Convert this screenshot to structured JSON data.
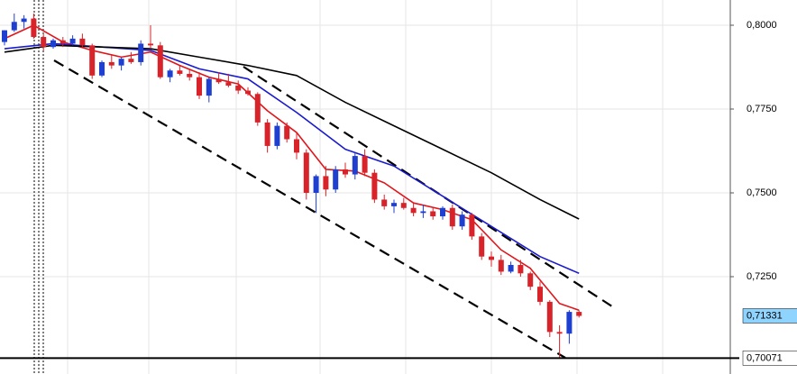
{
  "chart_data": {
    "type": "candlestick",
    "up_color": "#1f3fd0",
    "down_color": "#d8232a",
    "open": [
      0.795,
      0.7985,
      0.801,
      0.802,
      0.7965,
      0.7935,
      0.7955,
      0.7945,
      0.796,
      0.794,
      0.785,
      0.789,
      0.788,
      0.79,
      0.789,
      0.7945,
      0.794,
      0.7845,
      0.7865,
      0.7855,
      0.7845,
      0.779,
      0.784,
      0.783,
      0.782,
      0.7805,
      0.7795,
      0.771,
      0.764,
      0.77,
      0.766,
      0.762,
      0.75,
      0.755,
      0.751,
      0.757,
      0.7555,
      0.761,
      0.756,
      0.748,
      0.746,
      0.747,
      0.7455,
      0.744,
      0.7445,
      0.743,
      0.7455,
      0.74,
      0.7435,
      0.737,
      0.731,
      0.73,
      0.7265,
      0.7285,
      0.726,
      0.722,
      0.7175,
      0.7085,
      0.708,
      0.7145
    ],
    "high": [
      0.7985,
      0.8035,
      0.803,
      0.8035,
      0.7975,
      0.796,
      0.7965,
      0.797,
      0.7975,
      0.7945,
      0.7895,
      0.791,
      0.7905,
      0.792,
      0.7955,
      0.8,
      0.795,
      0.787,
      0.788,
      0.787,
      0.786,
      0.7845,
      0.786,
      0.7855,
      0.7835,
      0.7815,
      0.78,
      0.772,
      0.771,
      0.771,
      0.768,
      0.763,
      0.7555,
      0.758,
      0.758,
      0.759,
      0.762,
      0.763,
      0.757,
      0.7495,
      0.748,
      0.7485,
      0.747,
      0.7465,
      0.7455,
      0.746,
      0.7465,
      0.7445,
      0.744,
      0.738,
      0.7325,
      0.7315,
      0.7295,
      0.73,
      0.7265,
      0.7235,
      0.718,
      0.7105,
      0.715,
      0.715
    ],
    "low": [
      0.794,
      0.798,
      0.799,
      0.796,
      0.7925,
      0.793,
      0.7935,
      0.794,
      0.7935,
      0.784,
      0.7845,
      0.787,
      0.7865,
      0.7885,
      0.788,
      0.793,
      0.784,
      0.783,
      0.785,
      0.7835,
      0.778,
      0.777,
      0.7825,
      0.7815,
      0.7795,
      0.779,
      0.77,
      0.762,
      0.763,
      0.765,
      0.76,
      0.748,
      0.744,
      0.749,
      0.75,
      0.7545,
      0.754,
      0.755,
      0.747,
      0.745,
      0.744,
      0.745,
      0.743,
      0.7425,
      0.742,
      0.742,
      0.739,
      0.739,
      0.736,
      0.73,
      0.728,
      0.7255,
      0.726,
      0.725,
      0.721,
      0.7165,
      0.707,
      0.7007,
      0.705,
      0.7128
    ],
    "close": [
      0.7985,
      0.801,
      0.802,
      0.7965,
      0.7935,
      0.7955,
      0.7945,
      0.796,
      0.794,
      0.785,
      0.789,
      0.788,
      0.79,
      0.789,
      0.7945,
      0.794,
      0.7845,
      0.7865,
      0.7855,
      0.7845,
      0.779,
      0.784,
      0.783,
      0.782,
      0.7805,
      0.7795,
      0.771,
      0.764,
      0.77,
      0.766,
      0.762,
      0.75,
      0.755,
      0.751,
      0.757,
      0.7555,
      0.761,
      0.756,
      0.748,
      0.746,
      0.747,
      0.7455,
      0.744,
      0.7445,
      0.743,
      0.7455,
      0.74,
      0.7435,
      0.737,
      0.731,
      0.73,
      0.7265,
      0.7285,
      0.726,
      0.722,
      0.7175,
      0.7085,
      0.708,
      0.7145,
      0.7133
    ],
    "series": [
      {
        "color": "#e0161c",
        "x": [
          0,
          3,
          6,
          9,
          12,
          15,
          18,
          21,
          24,
          27,
          30,
          33,
          36,
          39,
          42,
          45,
          48,
          51,
          54,
          57,
          59
        ],
        "values": [
          0.796,
          0.8,
          0.795,
          0.7925,
          0.7905,
          0.792,
          0.788,
          0.7845,
          0.7825,
          0.7745,
          0.768,
          0.757,
          0.7565,
          0.753,
          0.747,
          0.745,
          0.742,
          0.733,
          0.7275,
          0.717,
          0.715
        ]
      },
      {
        "color": "#1a1acf",
        "x": [
          0,
          5,
          10,
          15,
          20,
          25,
          30,
          35,
          40,
          45,
          50,
          55,
          59
        ],
        "values": [
          0.793,
          0.7945,
          0.7935,
          0.7925,
          0.787,
          0.784,
          0.774,
          0.763,
          0.758,
          0.749,
          0.74,
          0.731,
          0.726
        ]
      },
      {
        "color": "#000000",
        "x": [
          0,
          5,
          10,
          15,
          20,
          25,
          30,
          35,
          40,
          45,
          50,
          55,
          59
        ],
        "values": [
          0.792,
          0.794,
          0.7935,
          0.793,
          0.7905,
          0.788,
          0.785,
          0.777,
          0.77,
          0.763,
          0.756,
          0.748,
          0.7422
        ]
      }
    ],
    "ylim": [
      0.69597,
      0.80753
    ],
    "yticks": [
      {
        "value": 0.8,
        "label": "0,8000"
      },
      {
        "value": 0.775,
        "label": "0,7750"
      },
      {
        "value": 0.75,
        "label": "0,7500"
      },
      {
        "value": 0.725,
        "label": "0,7250"
      }
    ],
    "grid": true,
    "price_labels": [
      {
        "value": 0.71331,
        "label": "0,71331",
        "color": "#8fd3ff"
      },
      {
        "value": 0.70071,
        "label": "0,70071",
        "color": "#ffffff",
        "line": true
      }
    ]
  }
}
